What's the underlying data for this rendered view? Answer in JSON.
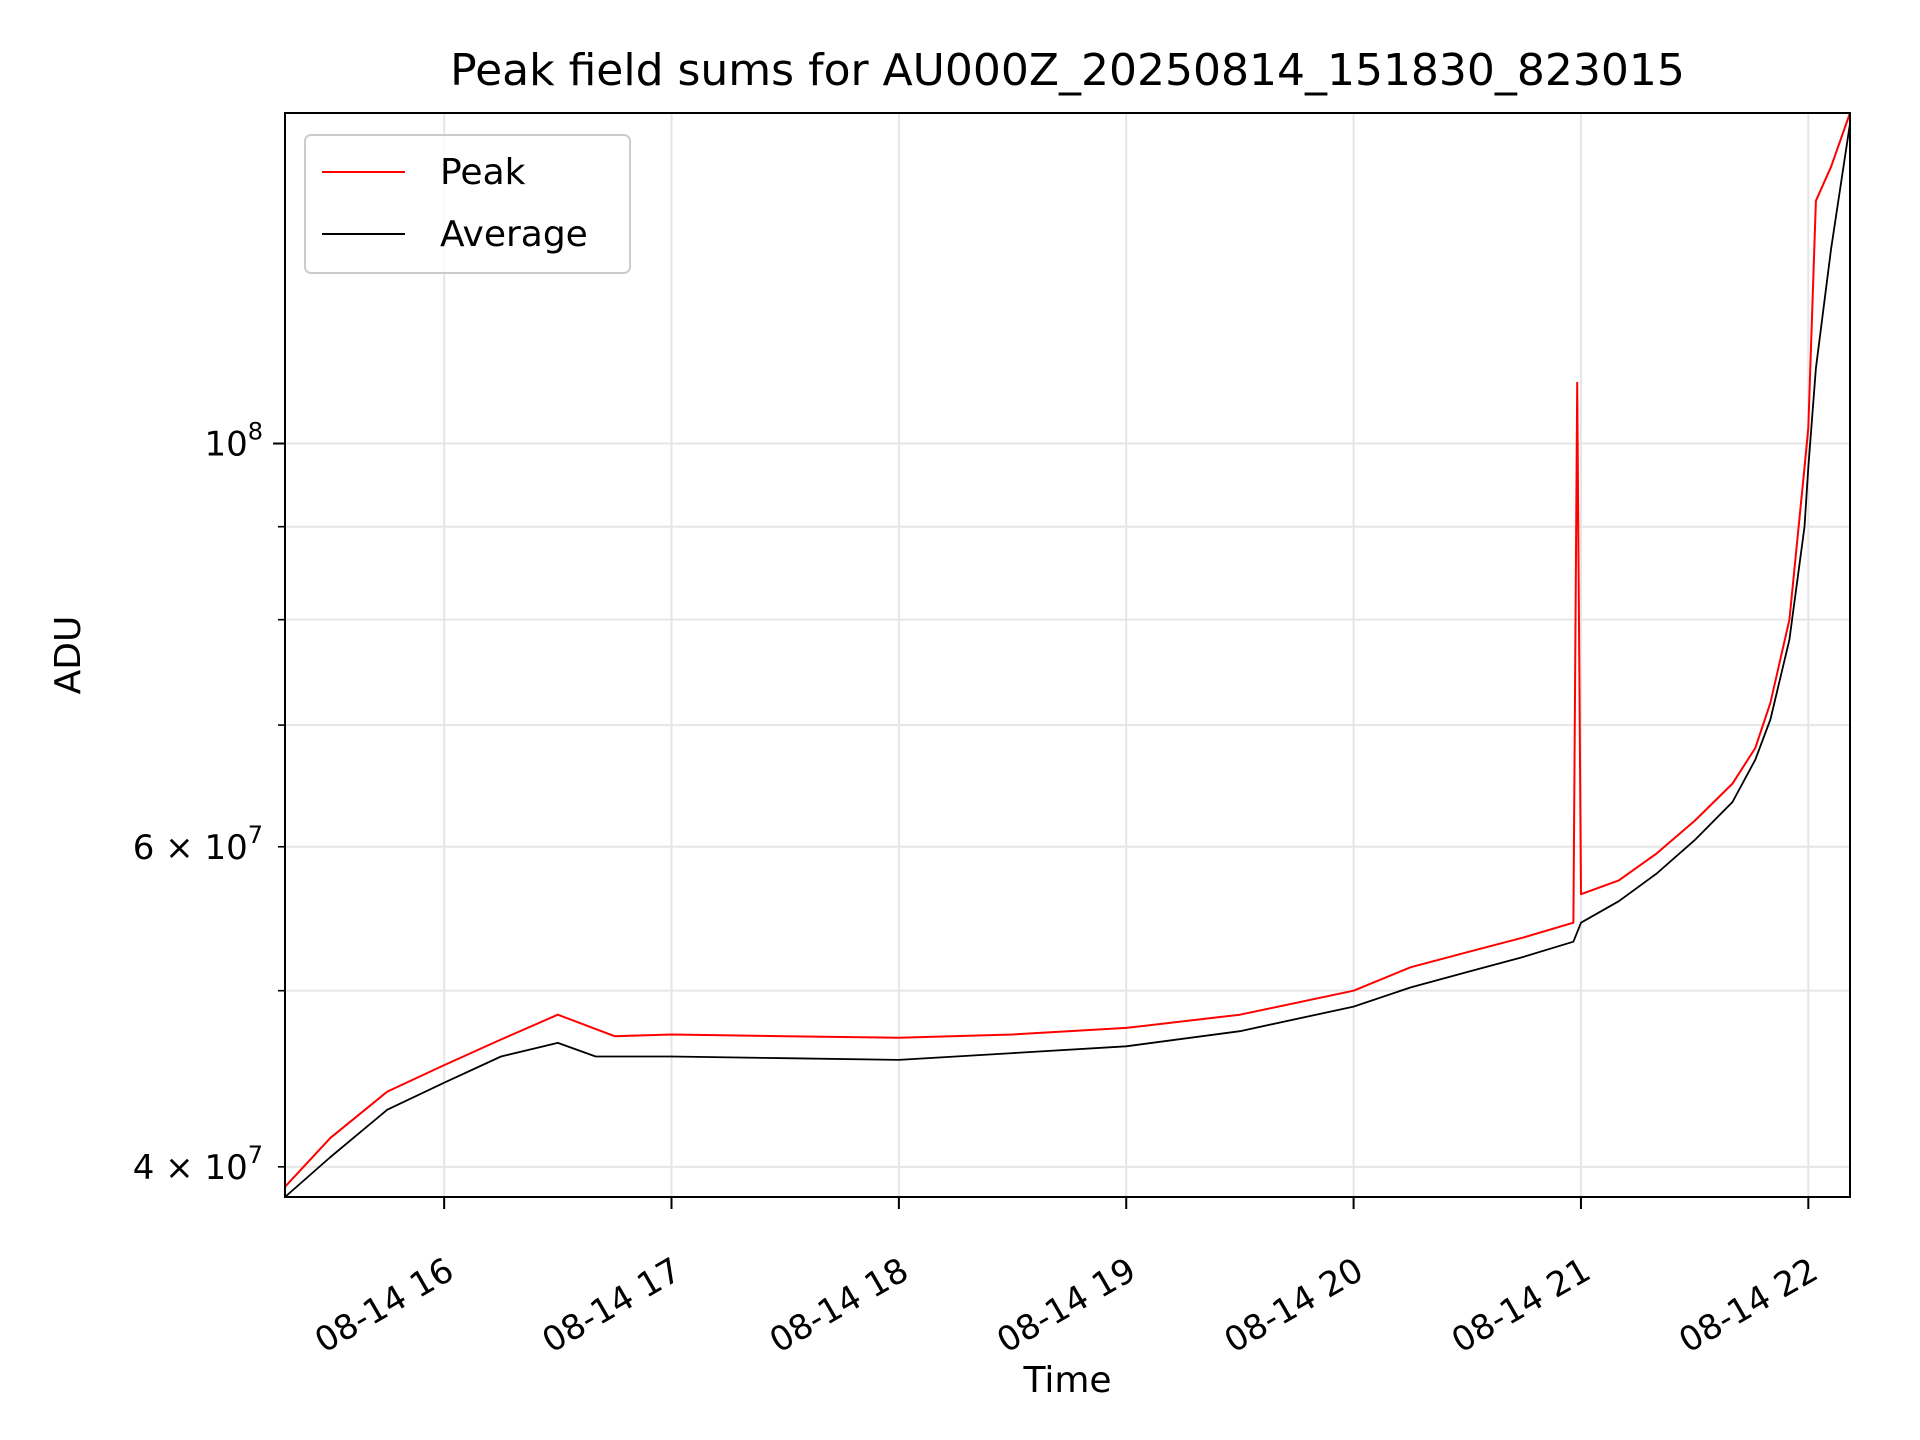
{
  "chart_data": {
    "type": "line",
    "title": "Peak field sums for AU000Z_20250814_151830_823015",
    "xlabel": "Time",
    "ylabel": "ADU",
    "y_scale": "log",
    "ylim": [
      38500000,
      152000000
    ],
    "xlim": [
      "2025-08-14 15:18",
      "2025-08-14 22:11"
    ],
    "grid": true,
    "legend_position": "top-left",
    "x_ticks": [
      {
        "label": "08-14 16",
        "value": "2025-08-14 16:00"
      },
      {
        "label": "08-14 17",
        "value": "2025-08-14 17:00"
      },
      {
        "label": "08-14 18",
        "value": "2025-08-14 18:00"
      },
      {
        "label": "08-14 19",
        "value": "2025-08-14 19:00"
      },
      {
        "label": "08-14 20",
        "value": "2025-08-14 20:00"
      },
      {
        "label": "08-14 21",
        "value": "2025-08-14 21:00"
      },
      {
        "label": "08-14 22",
        "value": "2025-08-14 22:00"
      }
    ],
    "y_ticks_major": [
      {
        "label_base": "10",
        "label_exp": "8",
        "label_prefix": "",
        "value": 100000000
      }
    ],
    "y_ticks_minor": [
      {
        "label_prefix": "4 × 10",
        "label_exp": "7",
        "value": 40000000
      },
      {
        "value": 50000000
      },
      {
        "label_prefix": "6 × 10",
        "label_exp": "7",
        "value": 60000000
      },
      {
        "value": 70000000
      },
      {
        "value": 80000000
      },
      {
        "value": 90000000
      }
    ],
    "series": [
      {
        "name": "Peak",
        "color": "#ff0000",
        "x": [
          "2025-08-14 15:18",
          "2025-08-14 15:30",
          "2025-08-14 15:45",
          "2025-08-14 16:00",
          "2025-08-14 16:15",
          "2025-08-14 16:30",
          "2025-08-14 16:45",
          "2025-08-14 17:00",
          "2025-08-14 17:30",
          "2025-08-14 18:00",
          "2025-08-14 18:30",
          "2025-08-14 19:00",
          "2025-08-14 19:30",
          "2025-08-14 20:00",
          "2025-08-14 20:15",
          "2025-08-14 20:30",
          "2025-08-14 20:45",
          "2025-08-14 20:58",
          "2025-08-14 20:59",
          "2025-08-14 21:00",
          "2025-08-14 21:10",
          "2025-08-14 21:20",
          "2025-08-14 21:30",
          "2025-08-14 21:40",
          "2025-08-14 21:46",
          "2025-08-14 21:50",
          "2025-08-14 21:55",
          "2025-08-14 21:59",
          "2025-08-14 22:00",
          "2025-08-14 22:02",
          "2025-08-14 22:06",
          "2025-08-14 22:11"
        ],
        "values": [
          39000000,
          41500000,
          44000000,
          45500000,
          47000000,
          48500000,
          47200000,
          47300000,
          47200000,
          47100000,
          47300000,
          47700000,
          48500000,
          50000000,
          51500000,
          52500000,
          53500000,
          54500000,
          108000000,
          56500000,
          57500000,
          59500000,
          62000000,
          65000000,
          68000000,
          72000000,
          80000000,
          97000000,
          102000000,
          136000000,
          142000000,
          152000000
        ]
      },
      {
        "name": "Average",
        "color": "#000000",
        "x": [
          "2025-08-14 15:18",
          "2025-08-14 15:30",
          "2025-08-14 15:45",
          "2025-08-14 16:00",
          "2025-08-14 16:15",
          "2025-08-14 16:30",
          "2025-08-14 16:40",
          "2025-08-14 17:00",
          "2025-08-14 17:30",
          "2025-08-14 18:00",
          "2025-08-14 18:30",
          "2025-08-14 19:00",
          "2025-08-14 19:30",
          "2025-08-14 20:00",
          "2025-08-14 20:15",
          "2025-08-14 20:30",
          "2025-08-14 20:45",
          "2025-08-14 20:58",
          "2025-08-14 21:00",
          "2025-08-14 21:10",
          "2025-08-14 21:20",
          "2025-08-14 21:30",
          "2025-08-14 21:40",
          "2025-08-14 21:46",
          "2025-08-14 21:50",
          "2025-08-14 21:55",
          "2025-08-14 21:59",
          "2025-08-14 22:00",
          "2025-08-14 22:02",
          "2025-08-14 22:06",
          "2025-08-14 22:11"
        ],
        "values": [
          38500000,
          40500000,
          43000000,
          44500000,
          46000000,
          46800000,
          46000000,
          46000000,
          45900000,
          45800000,
          46200000,
          46600000,
          47500000,
          49000000,
          50200000,
          51200000,
          52200000,
          53200000,
          54500000,
          56000000,
          58000000,
          60500000,
          63500000,
          67000000,
          70500000,
          78000000,
          90000000,
          97000000,
          110000000,
          128000000,
          150000000
        ]
      }
    ]
  }
}
